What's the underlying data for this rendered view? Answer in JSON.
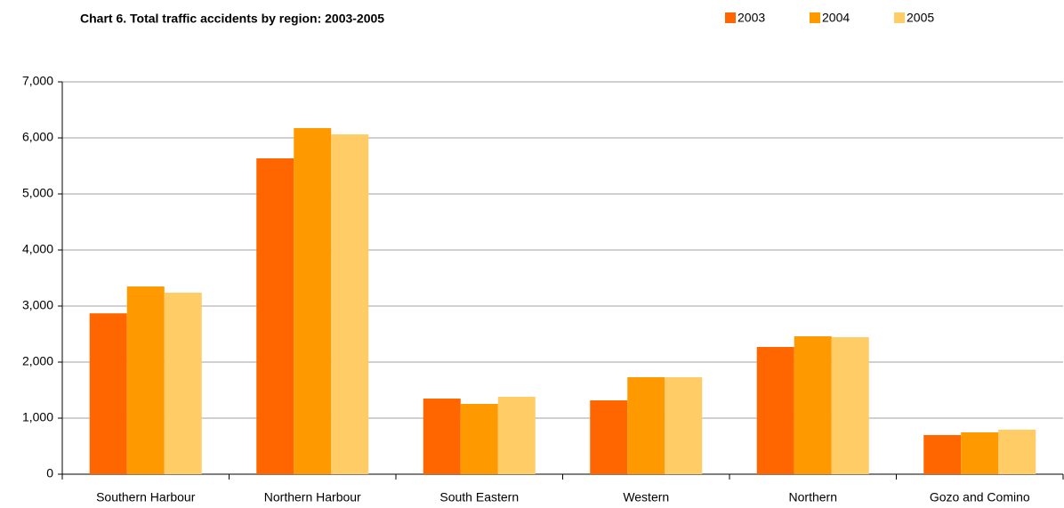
{
  "chart_data": {
    "type": "bar",
    "title": "Chart 6. Total traffic accidents by region: 2003-2005",
    "categories": [
      "Southern Harbour",
      "Northern Harbour",
      "South Eastern",
      "Western",
      "Northern",
      "Gozo and Comino"
    ],
    "series": [
      {
        "name": "2003",
        "color": "#ff6600",
        "values": [
          2870,
          5635,
          1349,
          1317,
          2270,
          698
        ]
      },
      {
        "name": "2004",
        "color": "#ff9900",
        "values": [
          3349,
          6175,
          1254,
          1730,
          2460,
          746
        ]
      },
      {
        "name": "2005",
        "color": "#ffcc66",
        "values": [
          3238,
          6063,
          1381,
          1730,
          2444,
          794
        ]
      }
    ],
    "ylim": [
      0,
      7000
    ],
    "yticks": [
      0,
      {
        "value": 1000,
        "label": "1,000"
      },
      {
        "value": 2000,
        "label": "2,000"
      },
      {
        "value": 3000,
        "label": "3,000"
      },
      {
        "value": 4000,
        "label": "4,000"
      },
      {
        "value": 5000,
        "label": "5,000"
      },
      {
        "value": 6000,
        "label": "6,000"
      },
      {
        "value": 7000,
        "label": "7,000"
      }
    ],
    "grid": true,
    "legend": "top-right"
  }
}
